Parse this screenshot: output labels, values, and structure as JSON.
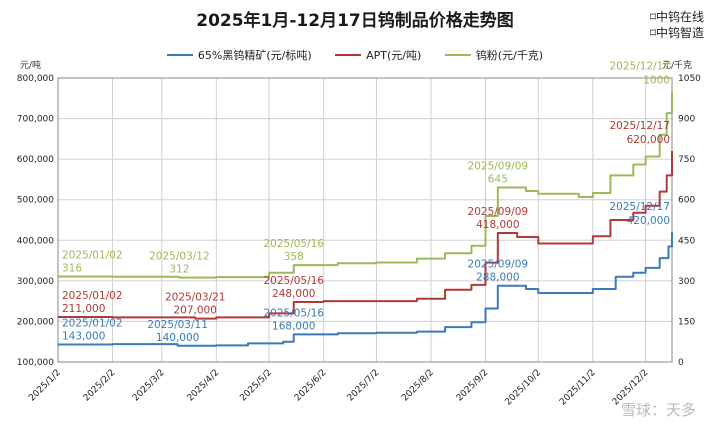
{
  "title": "2025年1月-12月17日钨制品价格走势图",
  "brand": {
    "line1": "中钨在线",
    "line2": "中钨智造"
  },
  "units": {
    "left": "元/吨",
    "right": "元/千克"
  },
  "watermark_text": "雪球：天多",
  "colors": {
    "wolframite": "#3c7ab8",
    "apt": "#b03a37",
    "powder": "#9bba59",
    "grid": "#d0d0d0"
  },
  "chart_data": {
    "type": "line",
    "x_tick_labels": [
      "2025/1/2",
      "2025/2/2",
      "2025/3/2",
      "2025/4/2",
      "2025/5/2",
      "2025/6/2",
      "2025/7/2",
      "2025/8/2",
      "2025/9/2",
      "2025/10/2",
      "2025/11/2",
      "2025/12/2"
    ],
    "x_range": [
      "2025-01-02",
      "2025-12-17"
    ],
    "y_left": {
      "min": 100000,
      "max": 800000,
      "step": 100000,
      "tick_labels": [
        "100,000",
        "200,000",
        "300,000",
        "400,000",
        "500,000",
        "600,000",
        "700,000",
        "800,000"
      ]
    },
    "y_right": {
      "min": 0,
      "max": 1050,
      "step": 150,
      "tick_labels": [
        "0",
        "150",
        "300",
        "450",
        "600",
        "750",
        "900",
        "1050"
      ]
    },
    "grid": true,
    "legend_position": "top",
    "series": [
      {
        "name": "65%黑钨精矿(元/标吨)",
        "axis": "left",
        "color_key": "wolframite",
        "points": [
          [
            "2025-01-02",
            143000
          ],
          [
            "2025-02-02",
            144000
          ],
          [
            "2025-03-11",
            140000
          ],
          [
            "2025-04-02",
            141000
          ],
          [
            "2025-04-20",
            146000
          ],
          [
            "2025-05-10",
            150000
          ],
          [
            "2025-05-16",
            168000
          ],
          [
            "2025-06-10",
            171000
          ],
          [
            "2025-07-02",
            172000
          ],
          [
            "2025-07-25",
            175000
          ],
          [
            "2025-08-10",
            186000
          ],
          [
            "2025-08-25",
            198000
          ],
          [
            "2025-09-02",
            232000
          ],
          [
            "2025-09-09",
            288000
          ],
          [
            "2025-09-25",
            280000
          ],
          [
            "2025-10-02",
            270000
          ],
          [
            "2025-10-25",
            270000
          ],
          [
            "2025-11-02",
            280000
          ],
          [
            "2025-11-15",
            310000
          ],
          [
            "2025-11-25",
            320000
          ],
          [
            "2025-12-02",
            332000
          ],
          [
            "2025-12-10",
            356000
          ],
          [
            "2025-12-15",
            385000
          ],
          [
            "2025-12-17",
            420000
          ]
        ]
      },
      {
        "name": "APT(元/吨)",
        "axis": "left",
        "color_key": "apt",
        "points": [
          [
            "2025-01-02",
            211000
          ],
          [
            "2025-02-02",
            210000
          ],
          [
            "2025-03-21",
            207000
          ],
          [
            "2025-04-02",
            210000
          ],
          [
            "2025-05-02",
            220000
          ],
          [
            "2025-05-16",
            248000
          ],
          [
            "2025-06-02",
            250000
          ],
          [
            "2025-07-02",
            250000
          ],
          [
            "2025-07-25",
            256000
          ],
          [
            "2025-08-10",
            278000
          ],
          [
            "2025-08-25",
            290000
          ],
          [
            "2025-09-02",
            345000
          ],
          [
            "2025-09-09",
            418000
          ],
          [
            "2025-09-20",
            408000
          ],
          [
            "2025-10-02",
            392000
          ],
          [
            "2025-10-25",
            392000
          ],
          [
            "2025-11-02",
            410000
          ],
          [
            "2025-11-12",
            450000
          ],
          [
            "2025-11-25",
            468000
          ],
          [
            "2025-12-02",
            485000
          ],
          [
            "2025-12-10",
            520000
          ],
          [
            "2025-12-14",
            560000
          ],
          [
            "2025-12-17",
            620000
          ]
        ]
      },
      {
        "name": "钨粉(元/千克)",
        "axis": "right",
        "color_key": "powder",
        "points": [
          [
            "2025-01-02",
            316
          ],
          [
            "2025-02-02",
            315
          ],
          [
            "2025-03-12",
            312
          ],
          [
            "2025-04-02",
            314
          ],
          [
            "2025-05-02",
            330
          ],
          [
            "2025-05-16",
            358
          ],
          [
            "2025-06-10",
            365
          ],
          [
            "2025-07-02",
            368
          ],
          [
            "2025-07-25",
            382
          ],
          [
            "2025-08-10",
            402
          ],
          [
            "2025-08-25",
            430
          ],
          [
            "2025-09-02",
            540
          ],
          [
            "2025-09-09",
            645
          ],
          [
            "2025-09-25",
            632
          ],
          [
            "2025-10-02",
            622
          ],
          [
            "2025-10-25",
            610
          ],
          [
            "2025-11-02",
            625
          ],
          [
            "2025-11-12",
            690
          ],
          [
            "2025-11-25",
            730
          ],
          [
            "2025-12-02",
            760
          ],
          [
            "2025-12-10",
            840
          ],
          [
            "2025-12-14",
            920
          ],
          [
            "2025-12-17",
            1000
          ]
        ]
      }
    ],
    "annotations": [
      {
        "date": "2025/01/02",
        "value": "316",
        "color_key": "powder",
        "x": "2025-01-02",
        "y": 316,
        "axis": "right",
        "pos": "above"
      },
      {
        "date": "2025/03/12",
        "value": "312",
        "color_key": "powder",
        "x": "2025-03-12",
        "y": 312,
        "axis": "right",
        "pos": "above"
      },
      {
        "date": "2025/05/16",
        "value": "358",
        "color_key": "powder",
        "x": "2025-05-16",
        "y": 358,
        "axis": "right",
        "pos": "above"
      },
      {
        "date": "2025/09/09",
        "value": "645",
        "color_key": "powder",
        "x": "2025-09-09",
        "y": 645,
        "axis": "right",
        "pos": "above"
      },
      {
        "date": "2025/12/17",
        "value": "1000",
        "color_key": "powder",
        "x": "2025-12-17",
        "y": 1000,
        "axis": "right",
        "pos": "left"
      },
      {
        "date": "2025/01/02",
        "value": "211,000",
        "color_key": "apt",
        "x": "2025-01-02",
        "y": 211000,
        "axis": "left",
        "pos": "above"
      },
      {
        "date": "2025/03/21",
        "value": "207,000",
        "color_key": "apt",
        "x": "2025-03-21",
        "y": 207000,
        "axis": "left",
        "pos": "above"
      },
      {
        "date": "2025/05/16",
        "value": "248,000",
        "color_key": "apt",
        "x": "2025-05-16",
        "y": 248000,
        "axis": "left",
        "pos": "above"
      },
      {
        "date": "2025/09/09",
        "value": "418,000",
        "color_key": "apt",
        "x": "2025-09-09",
        "y": 418000,
        "axis": "left",
        "pos": "above"
      },
      {
        "date": "2025/12/17",
        "value": "620,000",
        "color_key": "apt",
        "x": "2025-12-17",
        "y": 620000,
        "axis": "left",
        "pos": "left"
      },
      {
        "date": "2025/01/02",
        "value": "143,000",
        "color_key": "wolframite",
        "x": "2025-01-02",
        "y": 143000,
        "axis": "left",
        "pos": "above"
      },
      {
        "date": "2025/03/11",
        "value": "140,000",
        "color_key": "wolframite",
        "x": "2025-03-11",
        "y": 140000,
        "axis": "left",
        "pos": "above"
      },
      {
        "date": "2025/05/16",
        "value": "168,000",
        "color_key": "wolframite",
        "x": "2025-05-16",
        "y": 168000,
        "axis": "left",
        "pos": "above"
      },
      {
        "date": "2025/09/09",
        "value": "288,000",
        "color_key": "wolframite",
        "x": "2025-09-09",
        "y": 288000,
        "axis": "left",
        "pos": "above"
      },
      {
        "date": "2025/12/17",
        "value": "420,000",
        "color_key": "wolframite",
        "x": "2025-12-17",
        "y": 420000,
        "axis": "left",
        "pos": "left"
      }
    ]
  }
}
